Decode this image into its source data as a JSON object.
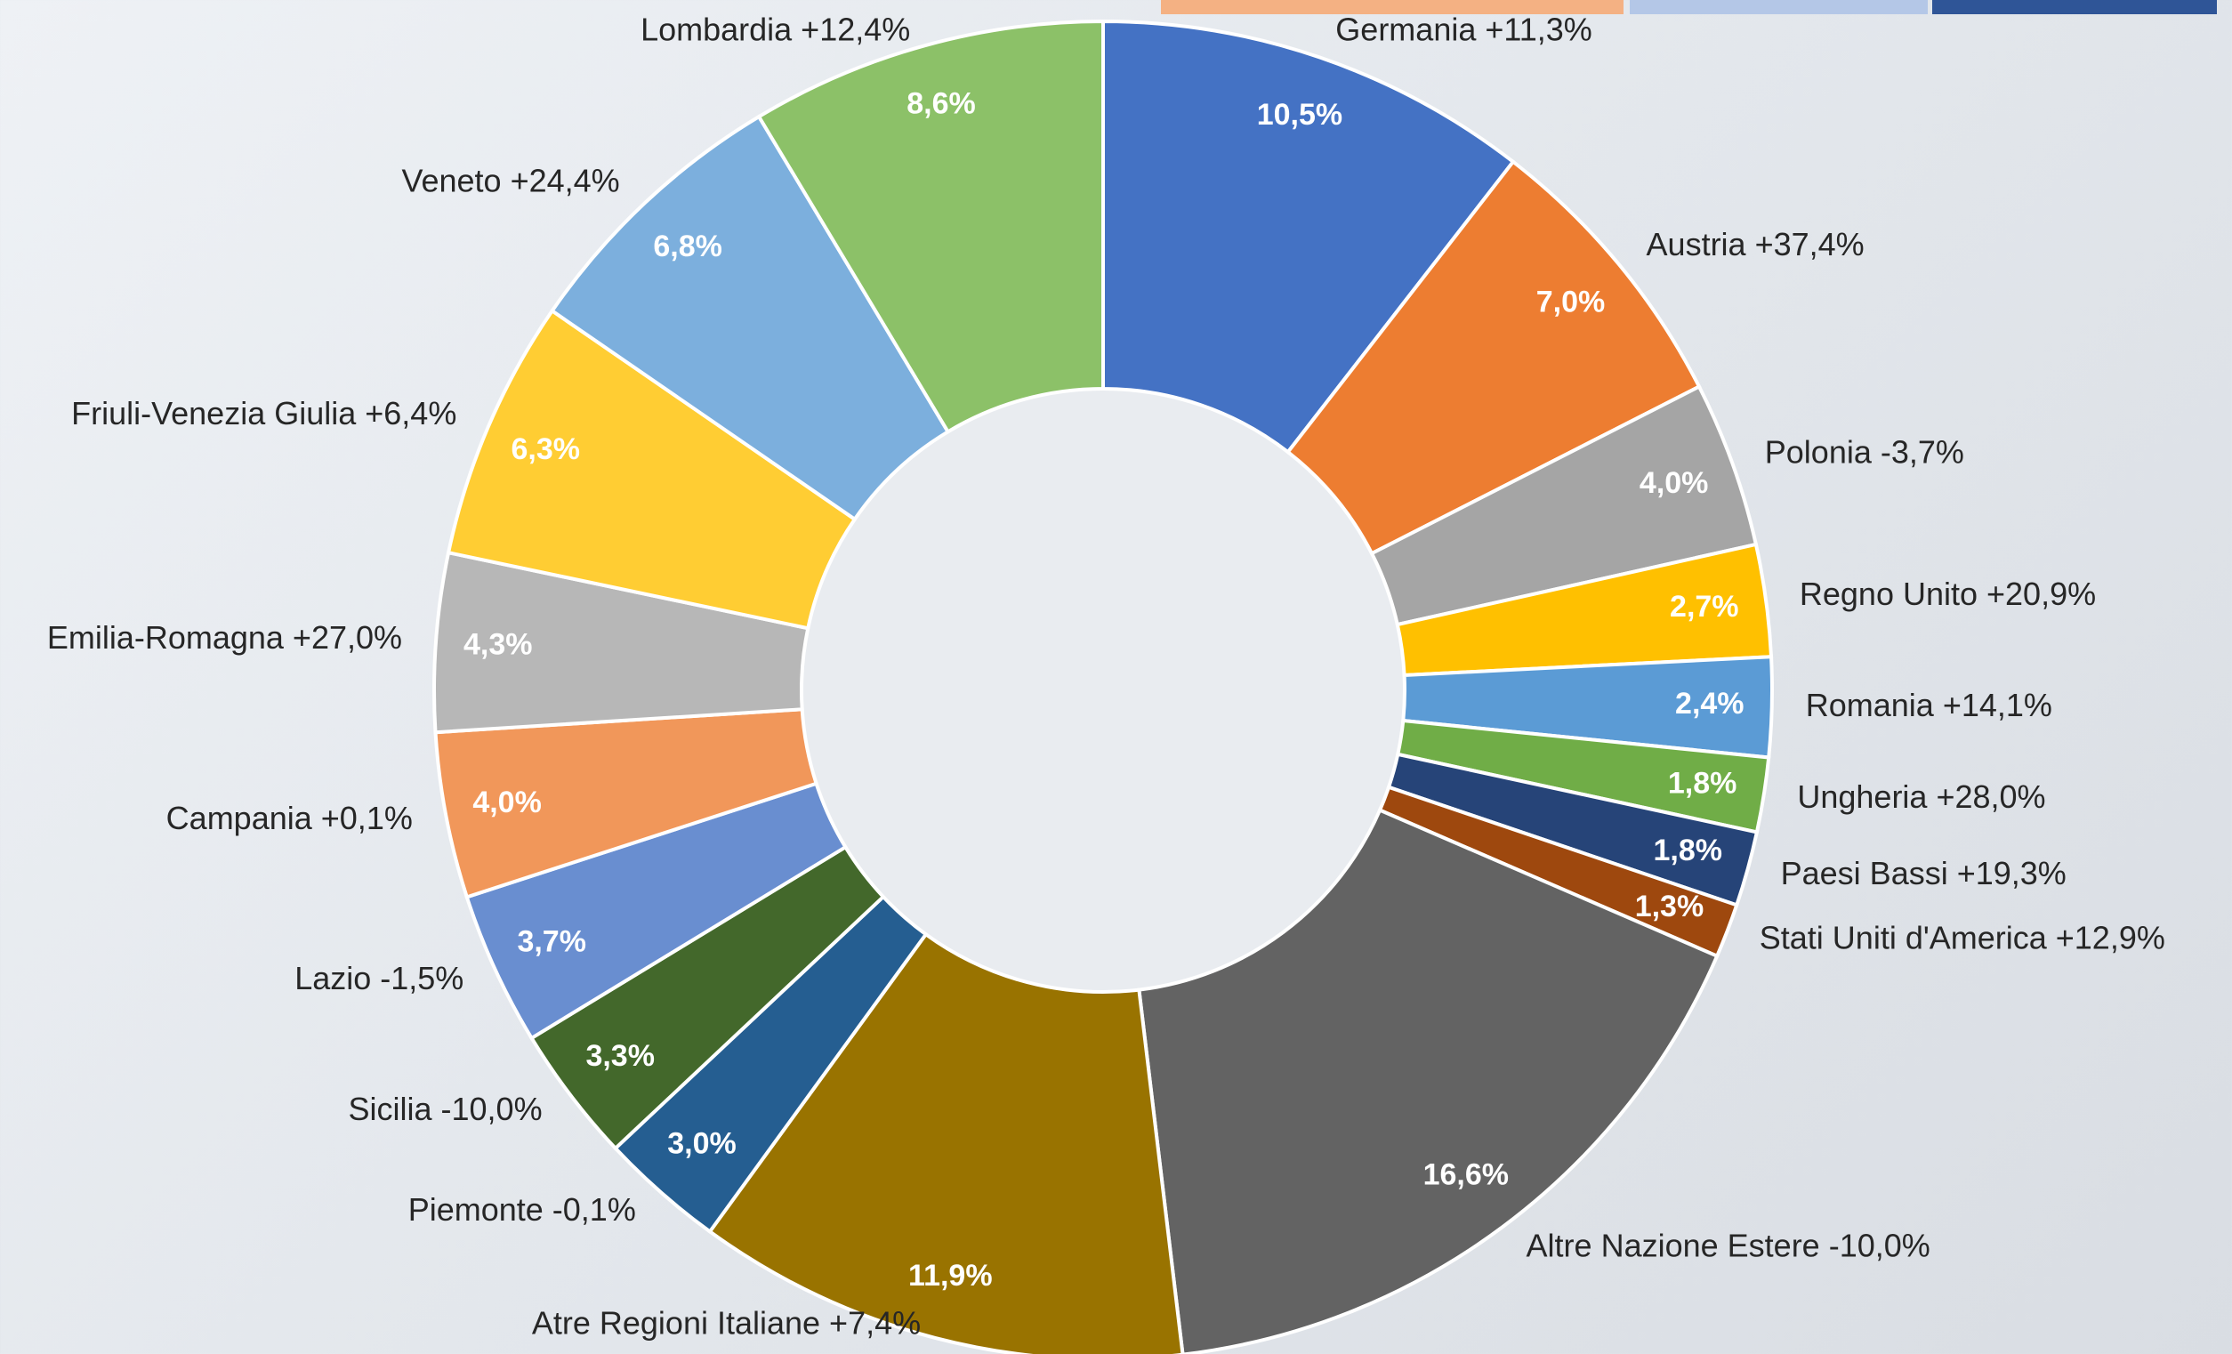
{
  "chart_data": {
    "type": "donut",
    "categories": [
      "Germania +11,3%",
      "Austria +37,4%",
      "Polonia -3,7%",
      "Regno Unito +20,9%",
      "Romania +14,1%",
      "Ungheria +28,0%",
      "Paesi Bassi +19,3%",
      "Stati Uniti d'America +12,9%",
      "Altre Nazione Estere -10,0%",
      "Atre Regioni Italiane +7,4%",
      "Piemonte -0,1%",
      "Sicilia -10,0%",
      "Lazio -1,5%",
      "Campania +0,1%",
      "Emilia-Romagna +27,0%",
      "Friuli-Venezia Giulia +6,4%",
      "Veneto +24,4%",
      "Lombardia +12,4%"
    ],
    "values": [
      10.5,
      7.0,
      4.0,
      2.7,
      2.4,
      1.8,
      1.8,
      1.3,
      16.6,
      11.9,
      3.0,
      3.3,
      3.7,
      4.0,
      4.3,
      6.3,
      6.8,
      8.6
    ],
    "value_labels": [
      "10,5%",
      "7,0%",
      "4,0%",
      "2,7%",
      "2,4%",
      "1,8%",
      "1,8%",
      "1,3%",
      "16,6%",
      "11,9%",
      "3,0%",
      "3,3%",
      "3,7%",
      "4,0%",
      "4,3%",
      "6,3%",
      "6,8%",
      "8,6%"
    ],
    "colors": [
      "#4472c4",
      "#ed7d31",
      "#a5a5a5",
      "#ffc000",
      "#5b9bd5",
      "#70ad47",
      "#264478",
      "#9e480e",
      "#636363",
      "#997300",
      "#255e91",
      "#43682b",
      "#698ed0",
      "#f1975a",
      "#b7b7b7",
      "#ffcd33",
      "#7cafdd",
      "#8cc168"
    ]
  }
}
